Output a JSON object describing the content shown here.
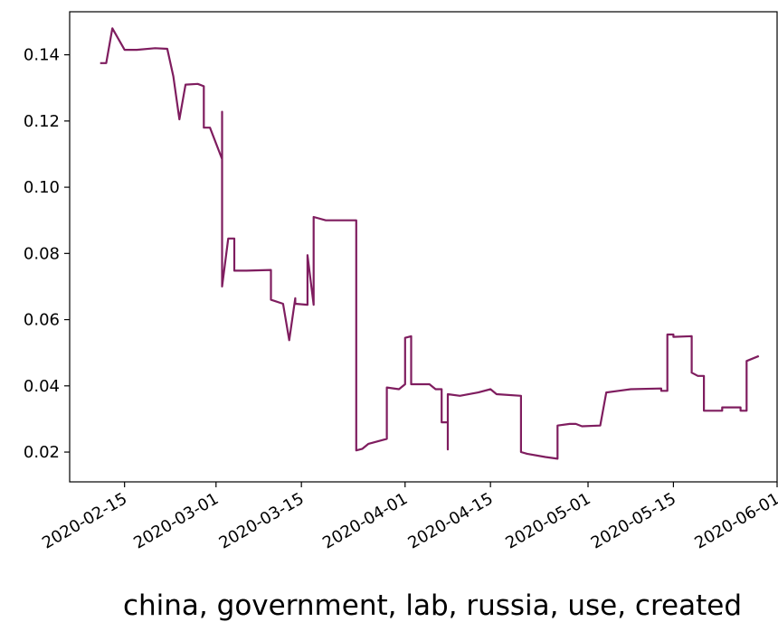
{
  "chart_data": {
    "type": "line",
    "title": "",
    "xlabel": "china, government, lab, russia, use, created",
    "ylabel": "",
    "grid": false,
    "xlim": [
      "2020-02-06",
      "2020-06-01"
    ],
    "ylim": [
      0.011,
      0.153
    ],
    "x_ticks": [
      "2020-02-15",
      "2020-03-01",
      "2020-03-15",
      "2020-04-01",
      "2020-04-15",
      "2020-05-01",
      "2020-05-15",
      "2020-06-01"
    ],
    "y_ticks": [
      "0.02",
      "0.04",
      "0.06",
      "0.08",
      "0.10",
      "0.12",
      "0.14"
    ],
    "series": [
      {
        "color": "#7f1d5f",
        "points": [
          [
            "2020-02-11",
            0.1375
          ],
          [
            "2020-02-12",
            0.1375
          ],
          [
            "2020-02-13",
            0.148
          ],
          [
            "2020-02-15",
            0.1415
          ],
          [
            "2020-02-17",
            0.1415
          ],
          [
            "2020-02-20",
            0.142
          ],
          [
            "2020-02-22",
            0.1418
          ],
          [
            "2020-02-23",
            0.1335
          ],
          [
            "2020-02-24",
            0.1205
          ],
          [
            "2020-02-25",
            0.131
          ],
          [
            "2020-02-27",
            0.1312
          ],
          [
            "2020-02-28",
            0.1305
          ],
          [
            "2020-02-28",
            0.118
          ],
          [
            "2020-02-29",
            0.118
          ],
          [
            "2020-03-02",
            0.1085
          ],
          [
            "2020-03-02",
            0.1228
          ],
          [
            "2020-03-02",
            0.07
          ],
          [
            "2020-03-03",
            0.0845
          ],
          [
            "2020-03-04",
            0.0845
          ],
          [
            "2020-03-04",
            0.0748
          ],
          [
            "2020-03-06",
            0.0748
          ],
          [
            "2020-03-10",
            0.075
          ],
          [
            "2020-03-10",
            0.066
          ],
          [
            "2020-03-12",
            0.0648
          ],
          [
            "2020-03-13",
            0.0538
          ],
          [
            "2020-03-14",
            0.0665
          ],
          [
            "2020-03-14",
            0.0648
          ],
          [
            "2020-03-16",
            0.0645
          ],
          [
            "2020-03-16",
            0.0795
          ],
          [
            "2020-03-17",
            0.0645
          ],
          [
            "2020-03-17",
            0.091
          ],
          [
            "2020-03-19",
            0.09
          ],
          [
            "2020-03-24",
            0.09
          ],
          [
            "2020-03-24",
            0.0205
          ],
          [
            "2020-03-25",
            0.021
          ],
          [
            "2020-03-26",
            0.0225
          ],
          [
            "2020-03-29",
            0.024
          ],
          [
            "2020-03-29",
            0.0395
          ],
          [
            "2020-03-31",
            0.039
          ],
          [
            "2020-04-01",
            0.0405
          ],
          [
            "2020-04-01",
            0.0545
          ],
          [
            "2020-04-02",
            0.055
          ],
          [
            "2020-04-02",
            0.0405
          ],
          [
            "2020-04-05",
            0.0405
          ],
          [
            "2020-04-06",
            0.039
          ],
          [
            "2020-04-07",
            0.039
          ],
          [
            "2020-04-07",
            0.029
          ],
          [
            "2020-04-08",
            0.029
          ],
          [
            "2020-04-08",
            0.0208
          ],
          [
            "2020-04-08",
            0.0375
          ],
          [
            "2020-04-10",
            0.037
          ],
          [
            "2020-04-13",
            0.038
          ],
          [
            "2020-04-15",
            0.039
          ],
          [
            "2020-04-16",
            0.0375
          ],
          [
            "2020-04-20",
            0.037
          ],
          [
            "2020-04-20",
            0.02
          ],
          [
            "2020-04-21",
            0.0195
          ],
          [
            "2020-04-24",
            0.0185
          ],
          [
            "2020-04-26",
            0.018
          ],
          [
            "2020-04-26",
            0.028
          ],
          [
            "2020-04-28",
            0.0285
          ],
          [
            "2020-04-29",
            0.0285
          ],
          [
            "2020-04-30",
            0.0278
          ],
          [
            "2020-05-03",
            0.028
          ],
          [
            "2020-05-04",
            0.038
          ],
          [
            "2020-05-06",
            0.0385
          ],
          [
            "2020-05-08",
            0.039
          ],
          [
            "2020-05-13",
            0.0392
          ],
          [
            "2020-05-13",
            0.0385
          ],
          [
            "2020-05-14",
            0.0385
          ],
          [
            "2020-05-14",
            0.0555
          ],
          [
            "2020-05-15",
            0.0555
          ],
          [
            "2020-05-15",
            0.0548
          ],
          [
            "2020-05-18",
            0.055
          ],
          [
            "2020-05-18",
            0.044
          ],
          [
            "2020-05-19",
            0.043
          ],
          [
            "2020-05-20",
            0.043
          ],
          [
            "2020-05-20",
            0.0325
          ],
          [
            "2020-05-23",
            0.0325
          ],
          [
            "2020-05-23",
            0.0335
          ],
          [
            "2020-05-26",
            0.0335
          ],
          [
            "2020-05-26",
            0.0325
          ],
          [
            "2020-05-27",
            0.0325
          ],
          [
            "2020-05-27",
            0.0475
          ],
          [
            "2020-05-29",
            0.049
          ]
        ]
      }
    ]
  }
}
